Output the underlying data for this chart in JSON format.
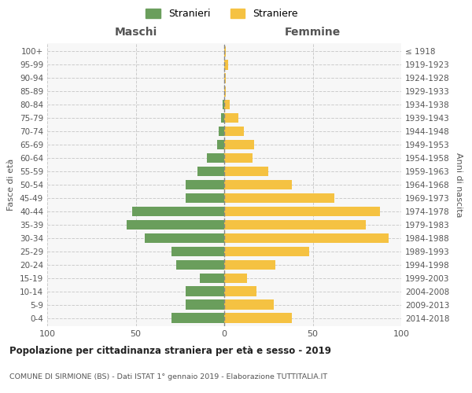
{
  "age_groups": [
    "0-4",
    "5-9",
    "10-14",
    "15-19",
    "20-24",
    "25-29",
    "30-34",
    "35-39",
    "40-44",
    "45-49",
    "50-54",
    "55-59",
    "60-64",
    "65-69",
    "70-74",
    "75-79",
    "80-84",
    "85-89",
    "90-94",
    "95-99",
    "100+"
  ],
  "birth_years": [
    "2014-2018",
    "2009-2013",
    "2004-2008",
    "1999-2003",
    "1994-1998",
    "1989-1993",
    "1984-1988",
    "1979-1983",
    "1974-1978",
    "1969-1973",
    "1964-1968",
    "1959-1963",
    "1954-1958",
    "1949-1953",
    "1944-1948",
    "1939-1943",
    "1934-1938",
    "1929-1933",
    "1924-1928",
    "1919-1923",
    "≤ 1918"
  ],
  "maschi": [
    30,
    22,
    22,
    14,
    27,
    30,
    45,
    55,
    52,
    22,
    22,
    15,
    10,
    4,
    3,
    2,
    1,
    0,
    0,
    0,
    0
  ],
  "femmine": [
    38,
    28,
    18,
    13,
    29,
    48,
    93,
    80,
    88,
    62,
    38,
    25,
    16,
    17,
    11,
    8,
    3,
    1,
    1,
    2,
    1
  ],
  "color_maschi": "#6a9e5c",
  "color_femmine": "#f5c242",
  "title": "Popolazione per cittadinanza straniera per età e sesso - 2019",
  "subtitle": "COMUNE DI SIRMIONE (BS) - Dati ISTAT 1° gennaio 2019 - Elaborazione TUTTITALIA.IT",
  "xlabel_left": "Maschi",
  "xlabel_right": "Femmine",
  "ylabel_left": "Fasce di età",
  "ylabel_right": "Anni di nascita",
  "xlim": 100,
  "legend_stranieri": "Stranieri",
  "legend_straniere": "Straniere",
  "bg_color": "#ffffff",
  "plot_bg_color": "#f7f7f7",
  "grid_color": "#cccccc"
}
